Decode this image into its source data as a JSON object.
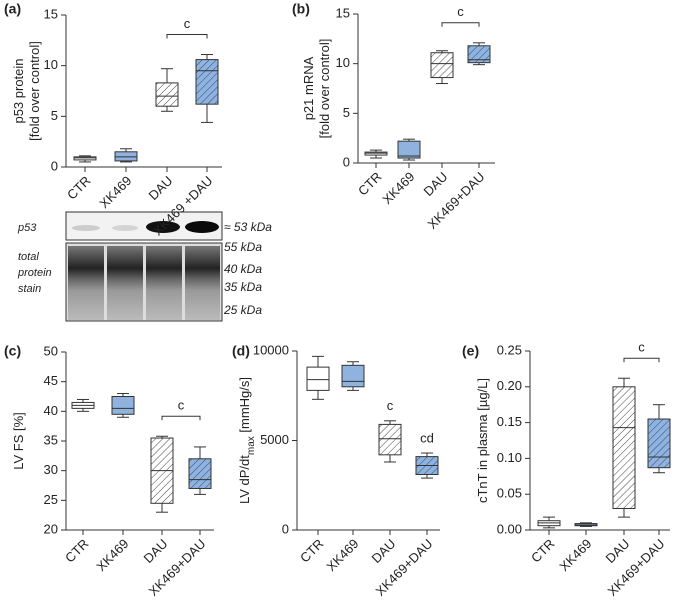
{
  "chart_data": [
    {
      "type": "box",
      "panel": "(a)",
      "ylabel": [
        [
          "p53 protein"
        ],
        [
          "[fold over control]"
        ]
      ],
      "categories": [
        "CTR",
        "XK469",
        "DAU",
        "XK469 +DAU"
      ],
      "values": [
        [
          0.5,
          0.7,
          0.9,
          1.0,
          1.1
        ],
        [
          0.5,
          0.6,
          1.0,
          1.5,
          1.8
        ],
        [
          5.5,
          6.0,
          7.0,
          8.3,
          9.7
        ],
        [
          4.4,
          6.2,
          9.5,
          10.6,
          11.1
        ]
      ],
      "colors": [
        "#ffffff",
        "#8fb3de",
        "#ffffff",
        "#8fb3de"
      ],
      "hatch": [
        false,
        false,
        true,
        true
      ],
      "ylim": [
        0,
        15
      ],
      "yticks": [
        0,
        5,
        10,
        15
      ],
      "annotations": [
        {
          "text": "c",
          "from": 2,
          "to": 3
        }
      ]
    },
    {
      "type": "box",
      "panel": "(b)",
      "ylabel": [
        [
          "p21 mRNA"
        ],
        [
          "[fold over control]"
        ]
      ],
      "categories": [
        "CTR",
        "XK469",
        "DAU",
        "XK469+DAU"
      ],
      "values": [
        [
          0.5,
          0.8,
          1.0,
          1.1,
          1.3
        ],
        [
          0.3,
          0.5,
          0.7,
          2.2,
          2.4
        ],
        [
          8.0,
          8.6,
          10.0,
          11.1,
          11.3
        ],
        [
          9.9,
          10.1,
          10.4,
          11.8,
          12.1
        ]
      ],
      "colors": [
        "#ffffff",
        "#8fb3de",
        "#ffffff",
        "#8fb3de"
      ],
      "hatch": [
        false,
        false,
        true,
        true
      ],
      "ylim": [
        0,
        15
      ],
      "yticks": [
        0,
        5,
        10,
        15
      ],
      "annotations": [
        {
          "text": "c",
          "from": 2,
          "to": 3
        }
      ]
    },
    {
      "type": "box",
      "panel": "(c)",
      "ylabel": [
        [
          "LV FS [%]"
        ]
      ],
      "categories": [
        "CTR",
        "XK469",
        "DAU",
        "XK469+DAU"
      ],
      "values": [
        [
          40,
          40.5,
          41,
          41.5,
          42
        ],
        [
          39,
          39.5,
          40.5,
          42.5,
          43
        ],
        [
          23,
          24.5,
          30,
          35.5,
          35.8
        ],
        [
          26,
          27,
          28.5,
          32,
          34
        ]
      ],
      "colors": [
        "#ffffff",
        "#8fb3de",
        "#ffffff",
        "#8fb3de"
      ],
      "hatch": [
        false,
        false,
        true,
        true
      ],
      "ylim": [
        20,
        50
      ],
      "yticks": [
        20,
        25,
        30,
        35,
        40,
        45,
        50
      ],
      "annotations": [
        {
          "text": "c",
          "from": 2,
          "to": 3
        }
      ]
    },
    {
      "type": "box",
      "panel": "(d)",
      "ylabel": [
        [
          "LV dP/dt",
          "max",
          " [mmHg/s]"
        ]
      ],
      "categories": [
        "CTR",
        "XK469",
        "DAU",
        "XK469+DAU"
      ],
      "values": [
        [
          7300,
          7800,
          8400,
          9100,
          9700
        ],
        [
          7800,
          8000,
          8300,
          9200,
          9400
        ],
        [
          3800,
          4200,
          5100,
          5900,
          6100
        ],
        [
          2900,
          3100,
          3600,
          4100,
          4300
        ]
      ],
      "colors": [
        "#ffffff",
        "#8fb3de",
        "#ffffff",
        "#8fb3de"
      ],
      "hatch": [
        false,
        false,
        true,
        true
      ],
      "ylim": [
        0,
        10000
      ],
      "yticks": [
        0,
        5000,
        10000
      ],
      "annotations": [
        {
          "text": "c",
          "from": 2,
          "to": 2
        },
        {
          "text": "cd",
          "from": 3,
          "to": 3
        }
      ]
    },
    {
      "type": "box",
      "panel": "(e)",
      "ylabel": [
        [
          "cTnT in plasma [µg/L]"
        ]
      ],
      "categories": [
        "CTR",
        "XK469",
        "DAU",
        "XK469+DAU"
      ],
      "values": [
        [
          0.003,
          0.006,
          0.01,
          0.013,
          0.018
        ],
        [
          0.005,
          0.006,
          0.007,
          0.009,
          0.01
        ],
        [
          0.018,
          0.03,
          0.143,
          0.2,
          0.212
        ],
        [
          0.08,
          0.087,
          0.102,
          0.155,
          0.175
        ]
      ],
      "colors": [
        "#ffffff",
        "#8fb3de",
        "#ffffff",
        "#8fb3de"
      ],
      "hatch": [
        false,
        false,
        true,
        true
      ],
      "ylim": [
        0,
        0.25
      ],
      "yticks": [
        {
          "value": 0,
          "label": "0.00"
        },
        {
          "value": 0.05,
          "label": "0.05"
        },
        {
          "value": 0.1,
          "label": "0.10"
        },
        {
          "value": 0.15,
          "label": "0.15"
        },
        {
          "value": 0.2,
          "label": "0.20"
        },
        {
          "value": 0.25,
          "label": "0.25"
        }
      ],
      "annotations": [
        {
          "text": "c",
          "from": 2,
          "to": 3
        }
      ]
    }
  ],
  "blot": {
    "left_labels": [
      "p53",
      "total",
      "protein",
      "stain"
    ],
    "right_labels": [
      "≈ 53 kDa",
      "55 kDa",
      "40 kDa",
      "35 kDa",
      "25 kDa"
    ]
  }
}
